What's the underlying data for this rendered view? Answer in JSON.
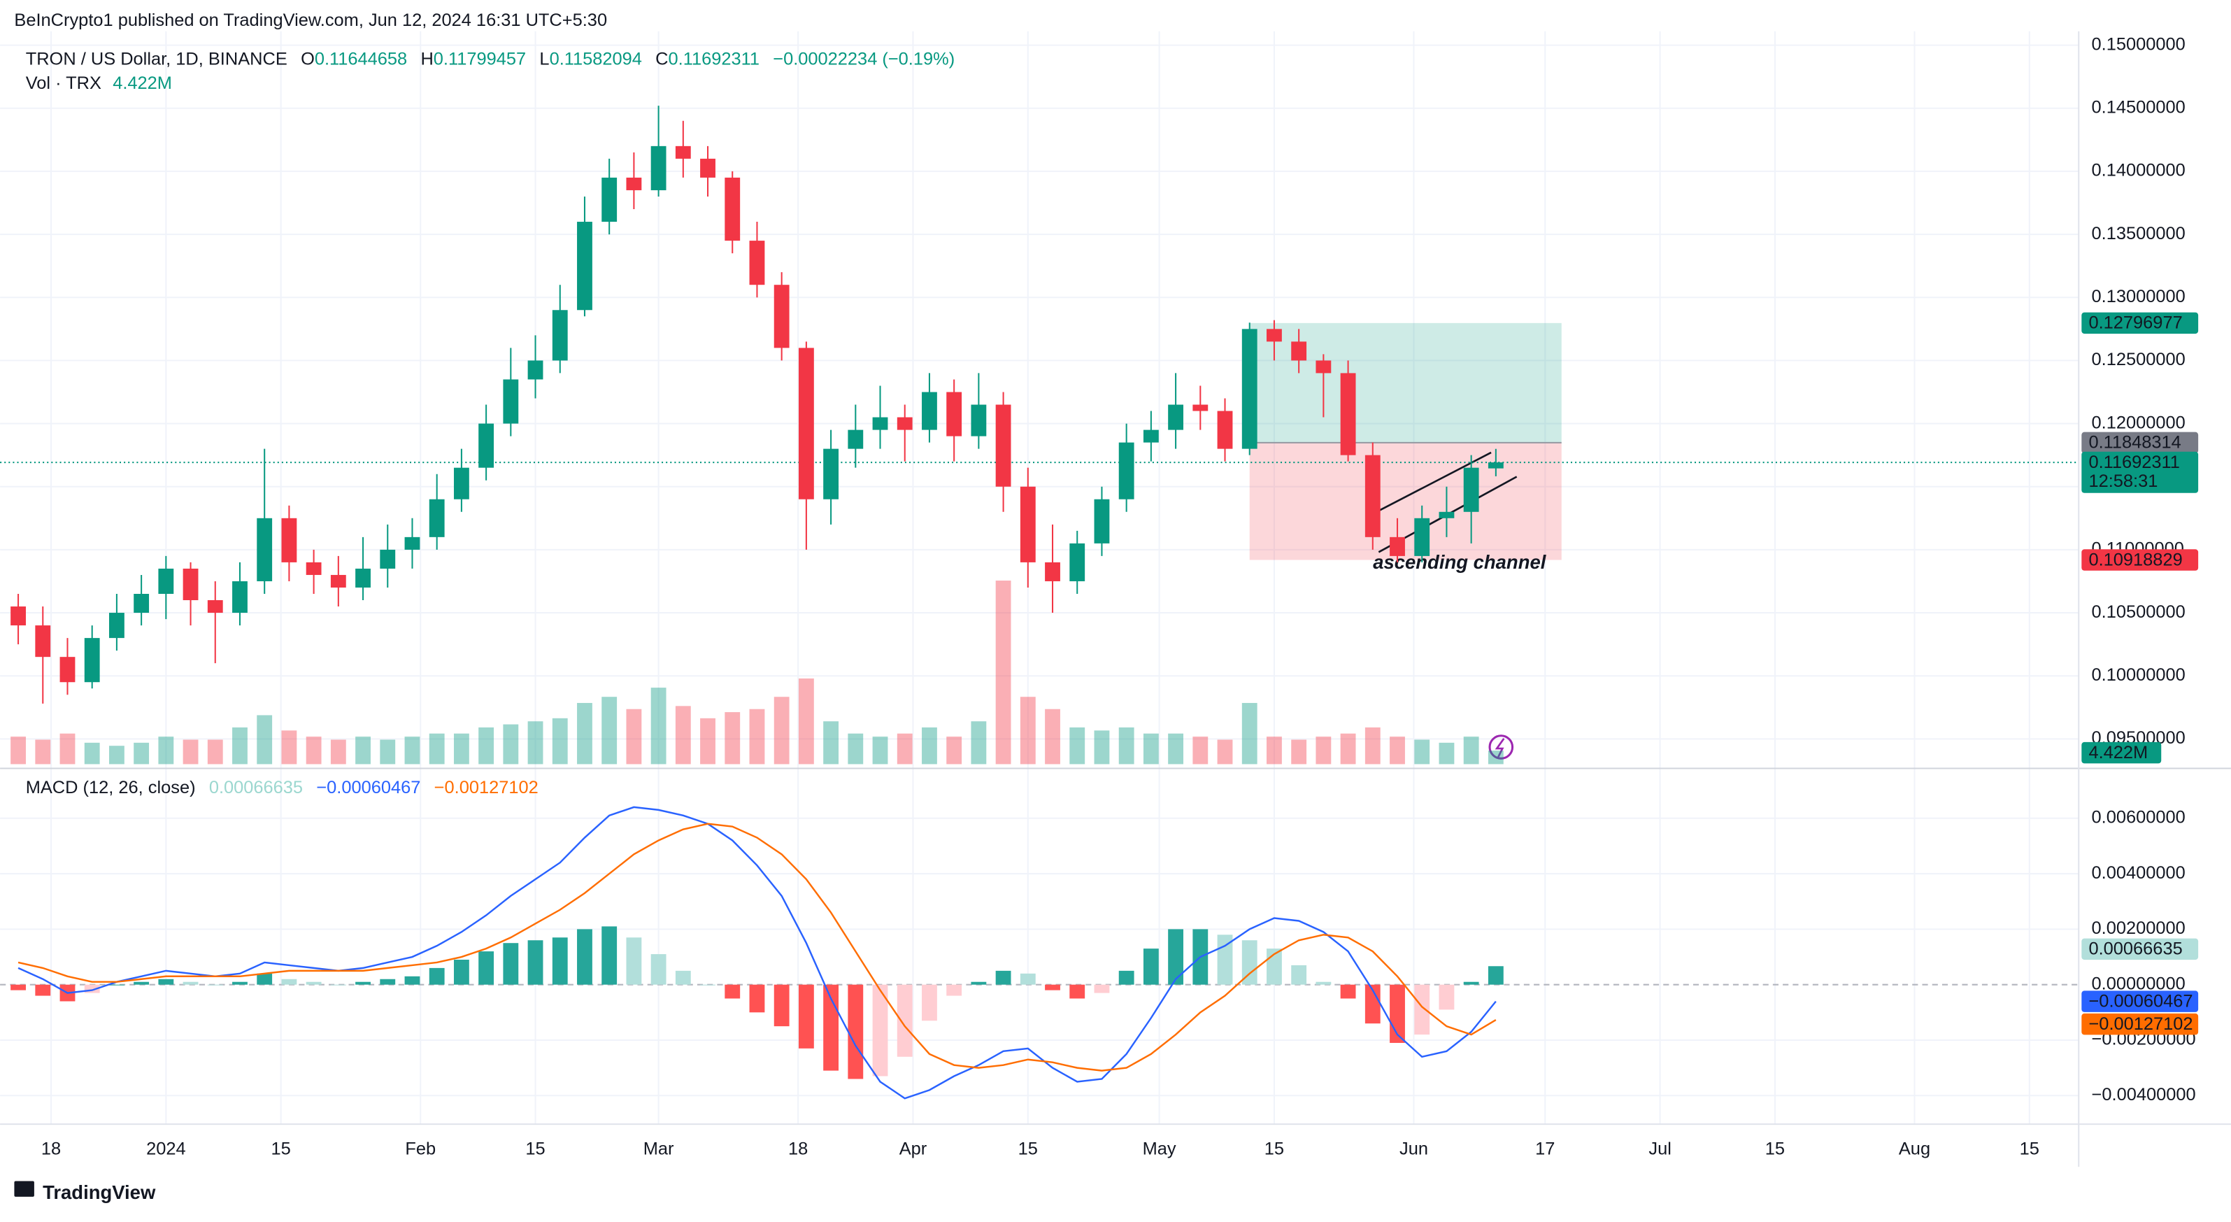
{
  "header": {
    "attribution": "BeInCrypto1 published on TradingView.com, Jun 12, 2024 16:31 UTC+5:30",
    "footer": "TradingView"
  },
  "chart_data": [
    {
      "type": "candlestick",
      "title": "TRON / US Dollar, 1D, BINANCE",
      "ohlc_letters": [
        "O",
        "H",
        "L",
        "C"
      ],
      "change": "−0.00022234 (−0.19%)",
      "x": [
        "2023-12-14",
        "2023-12-17",
        "2023-12-20",
        "2023-12-23",
        "2023-12-26",
        "2023-12-29",
        "2024-01-01",
        "2024-01-04",
        "2024-01-07",
        "2024-01-10",
        "2024-01-13",
        "2024-01-16",
        "2024-01-19",
        "2024-01-22",
        "2024-01-25",
        "2024-01-28",
        "2024-01-31",
        "2024-02-03",
        "2024-02-06",
        "2024-02-09",
        "2024-02-12",
        "2024-02-15",
        "2024-02-18",
        "2024-02-21",
        "2024-02-24",
        "2024-02-27",
        "2024-03-01",
        "2024-03-04",
        "2024-03-07",
        "2024-03-10",
        "2024-03-13",
        "2024-03-16",
        "2024-03-19",
        "2024-03-22",
        "2024-03-25",
        "2024-03-28",
        "2024-03-31",
        "2024-04-03",
        "2024-04-06",
        "2024-04-09",
        "2024-04-12",
        "2024-04-15",
        "2024-04-18",
        "2024-04-21",
        "2024-04-24",
        "2024-04-27",
        "2024-04-30",
        "2024-05-03",
        "2024-05-06",
        "2024-05-09",
        "2024-05-12",
        "2024-05-15",
        "2024-05-18",
        "2024-05-21",
        "2024-05-24",
        "2024-05-27",
        "2024-05-30",
        "2024-06-02",
        "2024-06-05",
        "2024-06-08",
        "2024-06-11"
      ],
      "open": [
        0.1055,
        0.104,
        0.1015,
        0.0995,
        0.103,
        0.105,
        0.1065,
        0.1085,
        0.106,
        0.105,
        0.1075,
        0.1125,
        0.109,
        0.108,
        0.107,
        0.1085,
        0.11,
        0.111,
        0.114,
        0.1165,
        0.12,
        0.1235,
        0.125,
        0.129,
        0.136,
        0.1395,
        0.1385,
        0.142,
        0.141,
        0.1395,
        0.1345,
        0.131,
        0.126,
        0.114,
        0.118,
        0.1195,
        0.1205,
        0.1195,
        0.1225,
        0.119,
        0.1215,
        0.115,
        0.109,
        0.1075,
        0.1105,
        0.114,
        0.1185,
        0.1195,
        0.1215,
        0.121,
        0.118,
        0.1275,
        0.1265,
        0.125,
        0.124,
        0.1175,
        0.111,
        0.1095,
        0.1125,
        0.113,
        0.11644658
      ],
      "high": [
        0.1065,
        0.1055,
        0.103,
        0.104,
        0.1065,
        0.108,
        0.1095,
        0.109,
        0.1075,
        0.109,
        0.118,
        0.1135,
        0.11,
        0.1095,
        0.111,
        0.112,
        0.1125,
        0.116,
        0.118,
        0.1215,
        0.126,
        0.127,
        0.131,
        0.138,
        0.141,
        0.1415,
        0.1452,
        0.144,
        0.142,
        0.14,
        0.136,
        0.132,
        0.1265,
        0.1195,
        0.1215,
        0.123,
        0.1215,
        0.124,
        0.1235,
        0.124,
        0.1225,
        0.1165,
        0.112,
        0.1115,
        0.115,
        0.12,
        0.121,
        0.124,
        0.123,
        0.122,
        0.128,
        0.1282,
        0.1275,
        0.1255,
        0.125,
        0.1185,
        0.1125,
        0.1135,
        0.115,
        0.1175,
        0.11799457
      ],
      "low": [
        0.1025,
        0.0978,
        0.0985,
        0.099,
        0.102,
        0.104,
        0.1045,
        0.104,
        0.101,
        0.104,
        0.1065,
        0.1075,
        0.1065,
        0.1055,
        0.106,
        0.107,
        0.1085,
        0.11,
        0.113,
        0.1155,
        0.119,
        0.122,
        0.124,
        0.1285,
        0.135,
        0.137,
        0.138,
        0.1395,
        0.138,
        0.1335,
        0.13,
        0.125,
        0.11,
        0.112,
        0.1165,
        0.118,
        0.117,
        0.1185,
        0.117,
        0.118,
        0.113,
        0.107,
        0.105,
        0.1065,
        0.1095,
        0.113,
        0.117,
        0.118,
        0.1195,
        0.117,
        0.1175,
        0.125,
        0.124,
        0.1205,
        0.117,
        0.11,
        0.109,
        0.109,
        0.111,
        0.1105,
        0.11582094
      ],
      "close": [
        0.104,
        0.1015,
        0.0995,
        0.103,
        0.105,
        0.1065,
        0.1085,
        0.106,
        0.105,
        0.1075,
        0.1125,
        0.109,
        0.108,
        0.107,
        0.1085,
        0.11,
        0.111,
        0.114,
        0.1165,
        0.12,
        0.1235,
        0.125,
        0.129,
        0.136,
        0.1395,
        0.1385,
        0.142,
        0.141,
        0.1395,
        0.1345,
        0.131,
        0.126,
        0.114,
        0.118,
        0.1195,
        0.1205,
        0.1195,
        0.1225,
        0.119,
        0.1215,
        0.115,
        0.109,
        0.1075,
        0.1105,
        0.114,
        0.1185,
        0.1195,
        0.1215,
        0.121,
        0.118,
        0.1275,
        0.1265,
        0.125,
        0.124,
        0.1175,
        0.111,
        0.1095,
        0.1125,
        0.113,
        0.1165,
        0.11692311
      ],
      "up_color": "#089981",
      "down_color": "#f23645",
      "xlim": [
        "2023-12-13",
        "2024-08-21"
      ],
      "xticks": [
        {
          "value": "2023-12-18",
          "label": "18"
        },
        {
          "value": "2024-01-01",
          "label": "2024"
        },
        {
          "value": "2024-01-15",
          "label": "15"
        },
        {
          "value": "2024-02-01",
          "label": "Feb"
        },
        {
          "value": "2024-02-15",
          "label": "15"
        },
        {
          "value": "2024-03-01",
          "label": "Mar"
        },
        {
          "value": "2024-03-18",
          "label": "18"
        },
        {
          "value": "2024-04-01",
          "label": "Apr"
        },
        {
          "value": "2024-04-15",
          "label": "15"
        },
        {
          "value": "2024-05-01",
          "label": "May"
        },
        {
          "value": "2024-05-15",
          "label": "15"
        },
        {
          "value": "2024-06-01",
          "label": "Jun"
        },
        {
          "value": "2024-06-17",
          "label": "17"
        },
        {
          "value": "2024-07-01",
          "label": "Jul"
        },
        {
          "value": "2024-07-15",
          "label": "15"
        },
        {
          "value": "2024-08-01",
          "label": "Aug"
        },
        {
          "value": "2024-08-15",
          "label": "15"
        }
      ],
      "ylim": [
        0.093,
        0.1511
      ],
      "yticks": [
        {
          "value": 0.095,
          "label": "0.09500000"
        },
        {
          "value": 0.1,
          "label": "0.10000000"
        },
        {
          "value": 0.105,
          "label": "0.10500000"
        },
        {
          "value": 0.11,
          "label": "0.11000000"
        },
        {
          "value": 0.115,
          "label": "0.11500000"
        },
        {
          "value": 0.12,
          "label": "0.12000000"
        },
        {
          "value": 0.125,
          "label": "0.12500000"
        },
        {
          "value": 0.13,
          "label": "0.13000000"
        },
        {
          "value": 0.135,
          "label": "0.13500000"
        },
        {
          "value": 0.14,
          "label": "0.14000000"
        },
        {
          "value": 0.145,
          "label": "0.14500000"
        },
        {
          "value": 0.15,
          "label": "0.15000000"
        }
      ],
      "countdown": "12:58:31",
      "position": {
        "target": 0.12796977,
        "entry": 0.11848314,
        "stop": 0.10918829,
        "start": "2024-05-12",
        "end": "2024-06-19"
      },
      "annotation": "ascending channel",
      "volume": {
        "name": "Vol · TRX",
        "last_label": "4.422M",
        "ylim": [
          0,
          60
        ],
        "values": [
          9,
          8,
          10,
          7,
          6,
          7,
          9,
          8,
          8,
          12,
          16,
          11,
          9,
          8,
          9,
          8,
          9,
          10,
          10,
          12,
          13,
          14,
          15,
          20,
          22,
          18,
          25,
          19,
          15,
          17,
          18,
          22,
          28,
          14,
          10,
          9,
          10,
          12,
          9,
          14,
          60,
          22,
          18,
          12,
          11,
          12,
          10,
          10,
          9,
          8,
          20,
          9,
          8,
          9,
          10,
          12,
          9,
          8,
          7,
          9,
          4.422
        ]
      }
    },
    {
      "type": "macd",
      "title": "MACD (12, 26, close)",
      "ylim": [
        -0.00503,
        0.00754
      ],
      "yticks": [
        {
          "value": 0.006,
          "label": "0.00600000"
        },
        {
          "value": 0.004,
          "label": "0.00400000"
        },
        {
          "value": 0.002,
          "label": "0.00200000"
        },
        {
          "value": 0,
          "label": "0.00000000"
        },
        {
          "value": -0.002,
          "label": "−0.00200000"
        },
        {
          "value": -0.004,
          "label": "−0.00400000"
        }
      ],
      "histogram": {
        "colors": [
          "#26a69a",
          "#b2dfdb",
          "#ffcdd2",
          "#ff5252"
        ],
        "values": [
          -0.0002,
          -0.0004,
          -0.0006,
          -0.0003,
          0,
          0.0001,
          0.0002,
          0.0001,
          0,
          0.0001,
          0.0004,
          0.0002,
          0.0001,
          0,
          0.0001,
          0.0002,
          0.0003,
          0.0006,
          0.0009,
          0.0012,
          0.0015,
          0.0016,
          0.0017,
          0.002,
          0.0021,
          0.0017,
          0.0011,
          0.0005,
          0,
          -0.0005,
          -0.001,
          -0.0015,
          -0.0023,
          -0.0031,
          -0.0034,
          -0.0033,
          -0.0026,
          -0.0013,
          -0.0004,
          0.0001,
          0.0005,
          0.0004,
          -0.0002,
          -0.0005,
          -0.0003,
          0.0005,
          0.0013,
          0.002,
          0.002,
          0.0018,
          0.0016,
          0.0013,
          0.0007,
          0.0001,
          -0.0005,
          -0.0014,
          -0.0021,
          -0.0018,
          -0.0009,
          0.0001,
          0.00066635
        ]
      },
      "macd": {
        "color": "#2962ff",
        "last_label": "−0.00060467",
        "values": [
          0.0006,
          0.0002,
          -0.0003,
          -0.0002,
          0.0001,
          0.0003,
          0.0005,
          0.0004,
          0.0003,
          0.0004,
          0.0008,
          0.0007,
          0.0006,
          0.0005,
          0.0006,
          0.0008,
          0.001,
          0.0014,
          0.0019,
          0.0025,
          0.0032,
          0.0038,
          0.0044,
          0.0053,
          0.0061,
          0.0064,
          0.0063,
          0.0061,
          0.0058,
          0.0052,
          0.0043,
          0.0032,
          0.0015,
          -0.0005,
          -0.0022,
          -0.0035,
          -0.0041,
          -0.0038,
          -0.0033,
          -0.0029,
          -0.0024,
          -0.0023,
          -0.003,
          -0.0035,
          -0.0034,
          -0.0025,
          -0.0012,
          0.0002,
          0.001,
          0.0014,
          0.002,
          0.0024,
          0.0023,
          0.0019,
          0.0012,
          -0.0002,
          -0.0018,
          -0.0026,
          -0.0024,
          -0.0017,
          -0.00060467
        ]
      },
      "signal": {
        "color": "#ff6d00",
        "last_label": "−0.00127102",
        "values": [
          0.0008,
          0.0006,
          0.0003,
          0.0001,
          0.0001,
          0.0002,
          0.0003,
          0.0003,
          0.0003,
          0.0003,
          0.0004,
          0.0005,
          0.0005,
          0.0005,
          0.0005,
          0.0006,
          0.0007,
          0.0008,
          0.001,
          0.0013,
          0.0017,
          0.0022,
          0.0027,
          0.0033,
          0.004,
          0.0047,
          0.0052,
          0.0056,
          0.0058,
          0.0057,
          0.0053,
          0.0047,
          0.0038,
          0.0026,
          0.0012,
          -0.0002,
          -0.0015,
          -0.0025,
          -0.0029,
          -0.003,
          -0.0029,
          -0.0027,
          -0.0028,
          -0.003,
          -0.0031,
          -0.003,
          -0.0025,
          -0.0018,
          -0.001,
          -0.0004,
          0.0004,
          0.0011,
          0.0016,
          0.0018,
          0.0017,
          0.0012,
          0.0003,
          -0.0008,
          -0.0015,
          -0.0018,
          -0.00127102
        ]
      }
    }
  ]
}
